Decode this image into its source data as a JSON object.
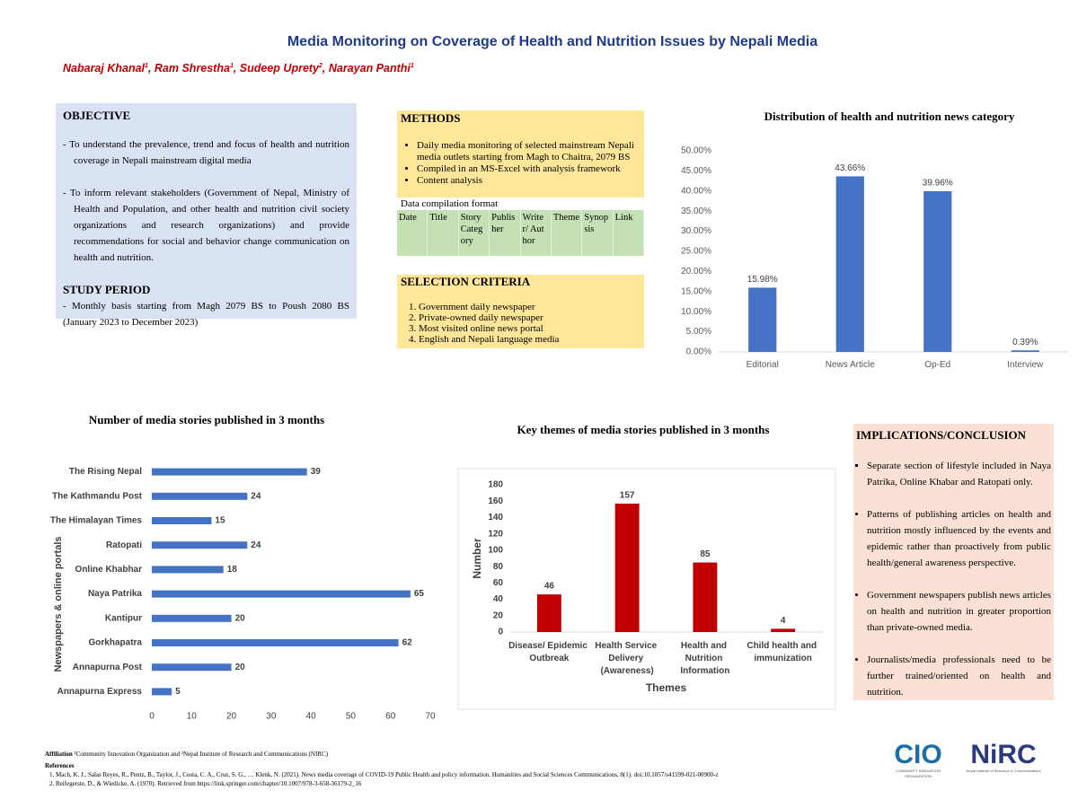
{
  "header": {
    "title": "Media Monitoring on Coverage of Health and Nutrition Issues by Nepali Media",
    "authors": [
      {
        "name": "Nabaraj Khanal",
        "affil": "1"
      },
      {
        "name": "Ram Shrestha",
        "affil": "1"
      },
      {
        "name": "Sudeep Uprety",
        "affil": "2"
      },
      {
        "name": "Narayan Panthi",
        "affil": "1"
      }
    ]
  },
  "objective": {
    "heading": "OBJECTIVE",
    "items": [
      "- To understand the prevalence, trend and focus of health and nutrition coverage in Nepali mainstream digital media",
      "- To inform relevant stakeholders (Government of Nepal, Ministry of Health and Population, and other health and nutrition civil society organizations and research organizations) and provide recommendations for social and behavior change communication on health and nutrition."
    ]
  },
  "study_period": {
    "heading": "STUDY PERIOD",
    "text": "- Monthly basis starting from Magh 2079 BS to Poush 2080 BS (January 2023 to December 2023)"
  },
  "methods": {
    "heading": "METHODS",
    "items": [
      "Daily media monitoring of selected mainstream Nepali media outlets starting from Magh to Chaitra, 2079 BS",
      "Compiled in an MS-Excel with analysis framework",
      "Content analysis"
    ]
  },
  "data_format": {
    "label": "Data compilation format",
    "columns": [
      "Date",
      "Title",
      "Story Category",
      "Publisher",
      "Writer/ Author",
      "Theme",
      "Synopsis",
      "Link"
    ]
  },
  "selection": {
    "heading": "SELECTION CRITERIA",
    "items": [
      "Government daily newspaper",
      "Private-owned daily newspaper",
      "Most visited online news portal",
      "English and Nepali language media"
    ]
  },
  "implications": {
    "heading": "IMPLICATIONS/CONCLUSION",
    "items": [
      "Separate section of lifestyle included in Naya Patrika, Online Khabar and Ratopati only.",
      "Patterns of publishing articles on health and nutrition mostly influenced by the events and epidemic rather than proactively from public health/general awareness perspective.",
      "Government newspapers publish news articles on health and nutrition in greater proportion than private-owned media.",
      "Journalists/media professionals need to be further trained/oriented on health and nutrition."
    ]
  },
  "footer": {
    "affiliation_label": "Affiliation",
    "affiliation": "¹Community Innovation Organization and ²Nepal Institute of Research and Communications (NIRC)",
    "references_heading": "References",
    "references": [
      "Mach, K. J., Salas Reyes, R., Pentz, B., Taylor, J., Costa, C. A., Cruz, S. G., … Klenk, N. (2021). News media coverage of COVID-19 Public Health and policy information. Humanities and Social Sciences Communications, 8(1). doi:10.1057/s41599-021-00900-z",
      "Reifegerste, D., & Wiedicke, A. (1970). Retrieved from https://link.springer.com/chapter/10.1007/978-3-658-36179-2_16"
    ],
    "logos": [
      {
        "mark": "CIO",
        "caption": "COMMUNITY INNOVATION ORGANIZATION"
      },
      {
        "mark": "NiRC",
        "caption": "Nepal Institute of Research & Communications"
      }
    ]
  },
  "chart_data": [
    {
      "type": "bar",
      "title": "Distribution of health and nutrition news category",
      "categories": [
        "Editorial",
        "News Article",
        "Op-Ed",
        "Interview"
      ],
      "values": [
        15.98,
        43.66,
        39.96,
        0.39
      ],
      "value_labels": [
        "15.98%",
        "43.66%",
        "39.96%",
        "0.39%"
      ],
      "color": "#4472c4",
      "ylim": [
        0,
        50
      ],
      "yticks": [
        {
          "value": 0,
          "label": "0.00%"
        },
        {
          "value": 5,
          "label": "5.00%"
        },
        {
          "value": 10,
          "label": "10.00%"
        },
        {
          "value": 15,
          "label": "15.00%"
        },
        {
          "value": 20,
          "label": "20.00%"
        },
        {
          "value": 25,
          "label": "25.00%"
        },
        {
          "value": 30,
          "label": "30.00%"
        },
        {
          "value": 35,
          "label": "35.00%"
        },
        {
          "value": 40,
          "label": "40.00%"
        },
        {
          "value": 45,
          "label": "45.00%"
        },
        {
          "value": 50,
          "label": "50.00%"
        }
      ]
    },
    {
      "type": "barh",
      "title": "Number of media stories published in 3 months",
      "categories": [
        "The Rising Nepal",
        "The Kathmandu Post",
        "The Himalayan Times",
        "Ratopati",
        "Online Khabhar",
        "Naya Patrika",
        "Kantipur",
        "Gorkhapatra",
        "Annapurna Post",
        "Annapurna Express"
      ],
      "values": [
        39,
        24,
        15,
        24,
        18,
        65,
        20,
        62,
        20,
        5
      ],
      "color": "#4472c4",
      "xlim": [
        0,
        70
      ],
      "xticks": [
        0,
        10,
        20,
        30,
        40,
        50,
        60,
        70
      ],
      "ylabel": "Newspapers & online portals"
    },
    {
      "type": "bar",
      "title": "Key themes of media stories published in 3 months",
      "categories": [
        "Disease/ Epidemic Outbreak",
        "Health Service Delivery (Awareness)",
        "Health and Nutrition Information",
        "Child health and immunization"
      ],
      "values": [
        46,
        157,
        85,
        4
      ],
      "color": "#c00000",
      "ylim": [
        0,
        180
      ],
      "yticks": [
        0,
        20,
        40,
        60,
        80,
        100,
        120,
        140,
        160,
        180
      ],
      "xlabel": "Themes",
      "ylabel": "Number"
    }
  ]
}
